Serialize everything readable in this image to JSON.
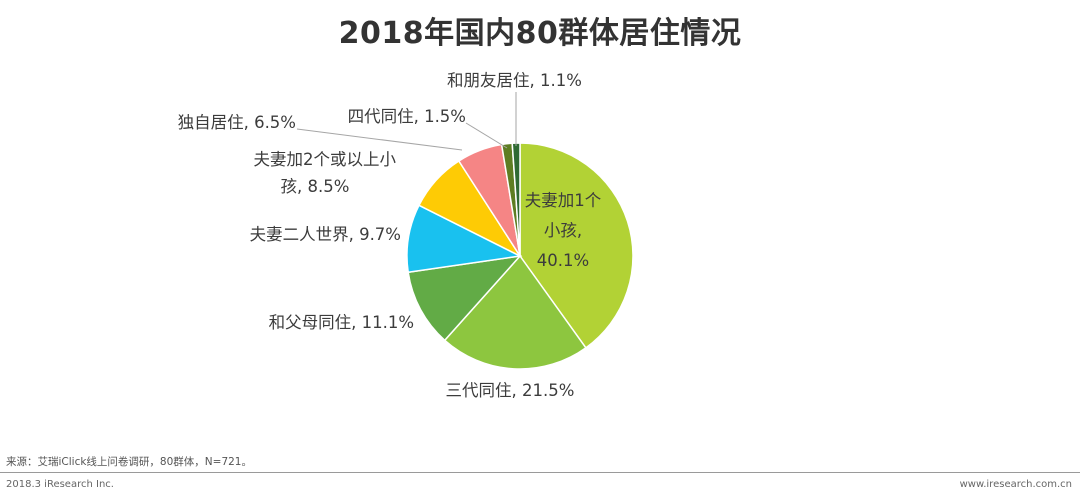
{
  "chart_data": {
    "type": "pie",
    "title": "2018年国内80群体居住情况",
    "slices": [
      {
        "label_lines": [
          "夫妻加1个",
          "小孩,",
          "40.1%"
        ],
        "value": 40.1,
        "color": "#b2d235"
      },
      {
        "label_lines": [
          "三代同住, 21.5%"
        ],
        "value": 21.5,
        "color": "#8dc63f"
      },
      {
        "label_lines": [
          "和父母同住, 11.1%"
        ],
        "value": 11.1,
        "color": "#62ab46"
      },
      {
        "label_lines": [
          "夫妻二人世界, 9.7%"
        ],
        "value": 9.7,
        "color": "#19c1ef"
      },
      {
        "label_lines": [
          "夫妻加2个或以上小",
          "孩, 8.5%"
        ],
        "value": 8.5,
        "color": "#fecb05"
      },
      {
        "label_lines": [
          "独自居住, 6.5%"
        ],
        "value": 6.5,
        "color": "#f58585"
      },
      {
        "label_lines": [
          "四代同住, 1.5%"
        ],
        "value": 1.5,
        "color": "#5e7d22"
      },
      {
        "label_lines": [
          "和朋友居住, 1.1%"
        ],
        "value": 1.1,
        "color": "#2f6a33"
      }
    ]
  },
  "footer": {
    "source": "来源：艾瑞iClick线上问卷调研，80群体，N=721。",
    "copyright": "2018.3 iResearch Inc.",
    "website": "www.iresearch.com.cn"
  }
}
